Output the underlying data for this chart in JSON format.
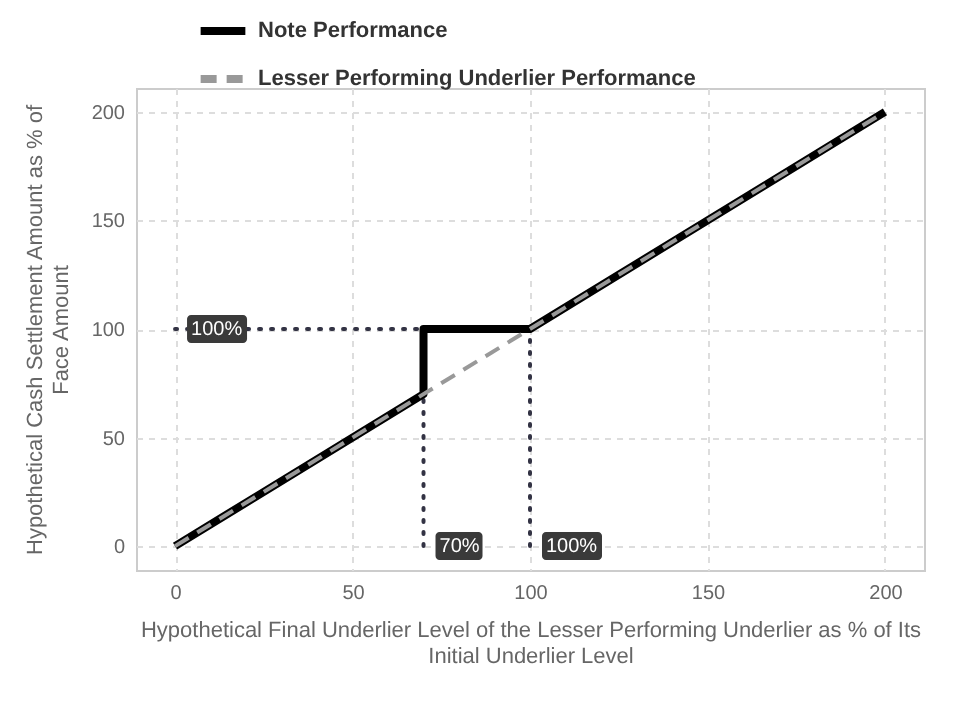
{
  "chart_data": {
    "type": "line",
    "xlabel": "Hypothetical Final Underlier Level of the Lesser Performing Underlier as % of Its Initial Underlier Level",
    "ylabel": "Hypothetical Cash Settlement Amount as % of Face Amount",
    "series": [
      {
        "x": [
          0,
          70
        ],
        "values": [
          100,
          100
        ],
        "color": "#333344",
        "line_style": "dotted"
      },
      {
        "x": [
          70,
          70
        ],
        "values": [
          0,
          100
        ],
        "color": "#333344",
        "line_style": "dotted"
      },
      {
        "x": [
          100,
          100
        ],
        "values": [
          0,
          100
        ],
        "color": "#333344",
        "line_style": "dotted"
      },
      {
        "name": "Note Performance",
        "x": [
          0,
          70,
          70,
          100,
          200
        ],
        "values": [
          0,
          70,
          100,
          100,
          200
        ],
        "color": "#000000",
        "line_style": "solid"
      },
      {
        "name": "Lesser Performing Underlier Performance",
        "x": [
          0,
          200
        ],
        "values": [
          0,
          200
        ],
        "color": "#999999",
        "line_style": "dashed"
      }
    ],
    "annotations": [
      {
        "text": "100%",
        "x": 0,
        "y": 100
      },
      {
        "text": "70%",
        "x": 70,
        "y": 0
      },
      {
        "text": "100%",
        "x": 100,
        "y": 0
      }
    ],
    "xlim": [
      -11,
      211
    ],
    "xticks": [
      0,
      50,
      100,
      150,
      200
    ],
    "ylim": [
      -11,
      211
    ],
    "yticks": [
      0,
      50,
      100,
      150,
      200
    ],
    "grid": true,
    "legend": "top left"
  }
}
